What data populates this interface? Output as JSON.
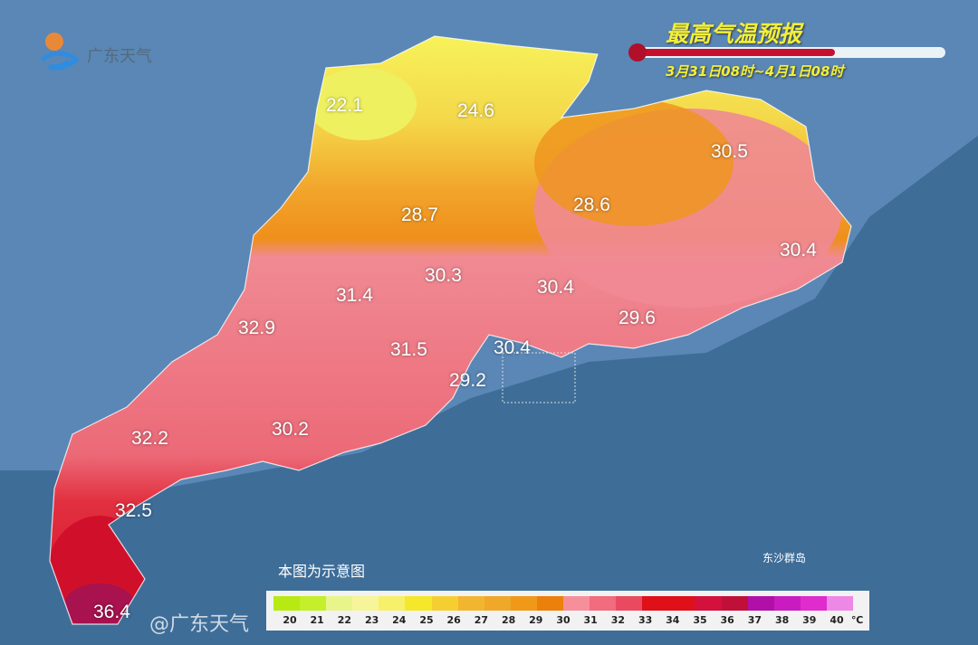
{
  "brand": {
    "name": "广东天气",
    "logo_icon": "guangdong-weather-logo"
  },
  "header": {
    "title": "最高气温预报",
    "period": "3月31日08时~4月1日08时",
    "progress_percent": 65
  },
  "map": {
    "note": "本图为示意图",
    "island_label": "东沙群岛",
    "values": [
      "22.1",
      "24.6",
      "30.5",
      "28.7",
      "28.6",
      "30.4",
      "30.3",
      "30.4",
      "31.4",
      "32.9",
      "31.5",
      "30.4",
      "29.6",
      "29.2",
      "32.2",
      "30.2",
      "32.5",
      "36.4"
    ],
    "colors": {
      "ocean": "#3e6d98",
      "land_bg": "#5a87b5",
      "yellow": "#f4ef4e",
      "orange": "#f09a22",
      "pink": "#f08a93",
      "red": "#e0142a",
      "magenta": "#b3124f"
    }
  },
  "legend": {
    "unit": "℃",
    "ticks": [
      "20",
      "21",
      "22",
      "23",
      "24",
      "25",
      "26",
      "27",
      "28",
      "29",
      "30",
      "31",
      "32",
      "33",
      "34",
      "35",
      "36",
      "37",
      "38",
      "39",
      "40"
    ],
    "colors": [
      "#b6ea12",
      "#c4ef2a",
      "#e8f58a",
      "#f6f59a",
      "#f7f06a",
      "#f5e82a",
      "#f5cf32",
      "#f2b530",
      "#f0a82a",
      "#f09818",
      "#ec800c",
      "#f5909b",
      "#f06c7e",
      "#ea4a60",
      "#e01018",
      "#e0101a",
      "#d4103c",
      "#c0103a",
      "#b010a8",
      "#c81cc0",
      "#e02ccc",
      "#ee88e6"
    ]
  },
  "watermark": "@广东天气"
}
